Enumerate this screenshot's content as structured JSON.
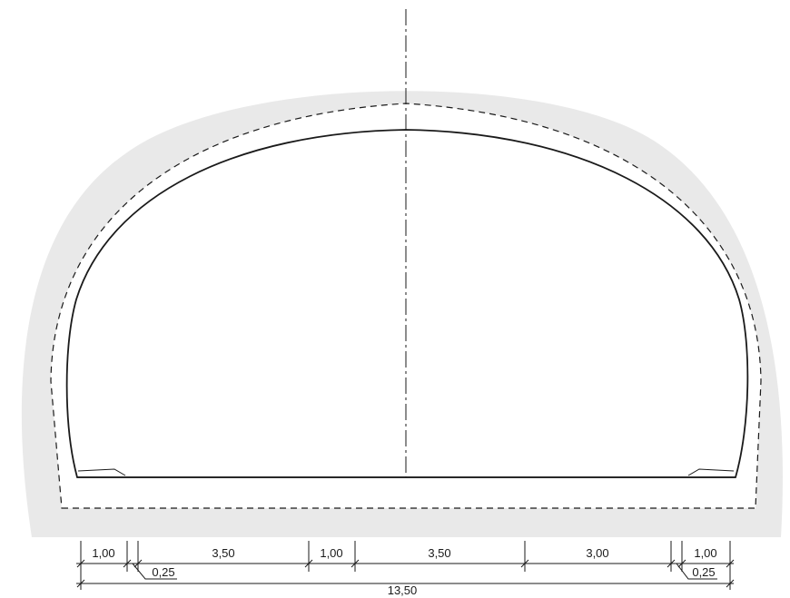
{
  "dimensions": {
    "top_row": [
      "1,00",
      "3,50",
      "1,00",
      "3,50",
      "3,00",
      "1,00"
    ],
    "left_offset": "0,25",
    "right_offset": "0,25",
    "total": "13,50"
  },
  "colors": {
    "lining_fill": "#e9e9e9",
    "line": "#1a1a1a",
    "background": "#ffffff"
  }
}
